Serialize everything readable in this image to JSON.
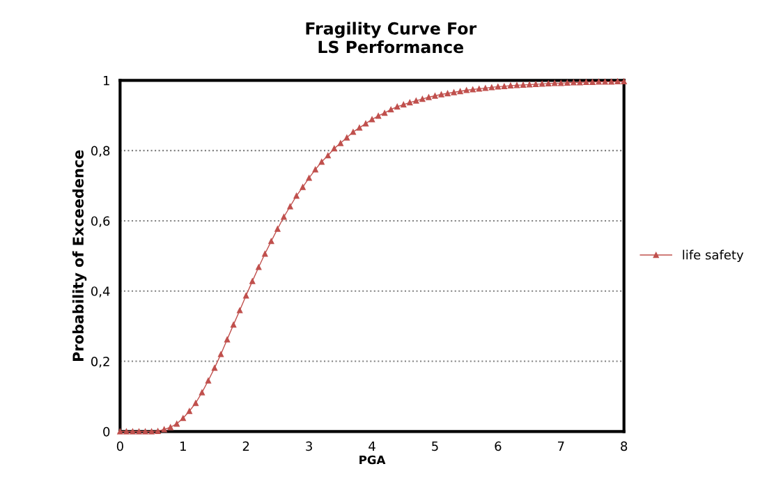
{
  "chart_data": {
    "type": "line",
    "title": "Fragility Curve For\nLS Performance",
    "xlabel": "PGA",
    "ylabel": "Probability of Exceedence",
    "x": [
      0,
      0.1,
      0.2,
      0.3,
      0.4,
      0.5,
      0.6,
      0.7,
      0.8,
      0.9,
      1.0,
      1.1,
      1.2,
      1.3,
      1.4,
      1.5,
      1.6,
      1.7,
      1.8,
      1.9,
      2.0,
      2.1,
      2.2,
      2.3,
      2.4,
      2.5,
      2.6,
      2.7,
      2.8,
      2.9,
      3.0,
      3.1,
      3.2,
      3.3,
      3.4,
      3.5,
      3.6,
      3.7,
      3.8,
      3.9,
      4.0,
      4.1,
      4.2,
      4.3,
      4.4,
      4.5,
      4.6,
      4.7,
      4.8,
      4.9,
      5.0,
      5.1,
      5.2,
      5.3,
      5.4,
      5.5,
      5.6,
      5.7,
      5.8,
      5.9,
      6.0,
      6.1,
      6.2,
      6.3,
      6.4,
      6.5,
      6.6,
      6.7,
      6.8,
      6.9,
      7.0,
      7.1,
      7.2,
      7.3,
      7.4,
      7.5,
      7.6,
      7.7,
      7.8,
      7.9,
      8.0
    ],
    "series": [
      {
        "name": "life safety",
        "color": "#c0504d",
        "values": [
          0,
          0,
          0,
          0,
          0,
          0,
          0.001,
          0.006,
          0.012,
          0.022,
          0.038,
          0.058,
          0.081,
          0.111,
          0.145,
          0.181,
          0.22,
          0.262,
          0.304,
          0.345,
          0.387,
          0.428,
          0.468,
          0.506,
          0.542,
          0.577,
          0.611,
          0.641,
          0.671,
          0.696,
          0.722,
          0.746,
          0.768,
          0.786,
          0.806,
          0.821,
          0.837,
          0.853,
          0.865,
          0.877,
          0.889,
          0.899,
          0.907,
          0.917,
          0.925,
          0.931,
          0.937,
          0.942,
          0.947,
          0.952,
          0.956,
          0.96,
          0.963,
          0.966,
          0.969,
          0.972,
          0.974,
          0.976,
          0.978,
          0.98,
          0.982,
          0.983,
          0.985,
          0.986,
          0.987,
          0.988,
          0.989,
          0.99,
          0.991,
          0.992,
          0.992,
          0.993,
          0.994,
          0.994,
          0.995,
          0.995,
          0.996,
          0.996,
          0.996,
          0.997,
          0.997
        ]
      }
    ],
    "xlim": [
      0,
      8
    ],
    "xticks": [
      0,
      1,
      2,
      3,
      4,
      5,
      6,
      7,
      8
    ],
    "ylim": [
      0,
      1
    ],
    "yticks": [
      {
        "value": 0,
        "label": "0"
      },
      {
        "value": 0.2,
        "label": "0,2"
      },
      {
        "value": 0.4,
        "label": "0,4"
      },
      {
        "value": 0.6,
        "label": "0,6"
      },
      {
        "value": 0.8,
        "label": "0,8"
      },
      {
        "value": 1,
        "label": "1"
      }
    ],
    "grid": "y",
    "legend": "right",
    "marker": "triangle",
    "line_style": "solid"
  }
}
